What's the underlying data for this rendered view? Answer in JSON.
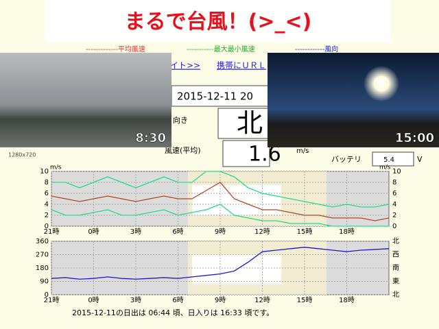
{
  "title": "まるで台風！(>_<)",
  "legend": [
    "-------------平均風速",
    "-----------最大最小風速",
    "------------風向"
  ],
  "nav": [
    "イト>>",
    "携帯にＵＲＬ"
  ],
  "photos": [
    {
      "time": "8:30"
    },
    {
      "time": "15:00"
    }
  ],
  "panel": {
    "datetime": "2015-12-11 20",
    "direction_label": "向き",
    "direction": "北",
    "speed_label": "風速(平均)",
    "speed": "1.6",
    "unit": "m/s",
    "battery_label": "バッテリ",
    "battery": "5.4",
    "battery_unit": "V",
    "resolution": "1280x720"
  },
  "chart_data": [
    {
      "type": "line",
      "y_label": "m/s",
      "x": [
        0,
        1,
        2,
        3,
        4,
        5,
        6,
        7,
        8,
        9,
        10,
        11,
        12,
        13,
        14,
        15,
        16,
        17,
        18,
        19,
        20,
        21,
        22,
        23,
        24
      ],
      "series": [
        {
          "name": "最大",
          "color": "#22dd88",
          "values": [
            8,
            8,
            7,
            8,
            9,
            8,
            7,
            8,
            9,
            8,
            8,
            10,
            10,
            9,
            7,
            6,
            5.5,
            5,
            4.5,
            4,
            3.5,
            4,
            3.5,
            3.5,
            4
          ]
        },
        {
          "name": "最小",
          "color": "#22dd88",
          "values": [
            3,
            2,
            2,
            2.5,
            3,
            2,
            2,
            2.5,
            3,
            2,
            2.5,
            3,
            4,
            2,
            1.5,
            1,
            1,
            0.5,
            0.5,
            0.5,
            0,
            0,
            0,
            0,
            0
          ]
        },
        {
          "name": "平均",
          "color": "#b5471f",
          "values": [
            5.5,
            5,
            4.5,
            5,
            5.5,
            5,
            4.5,
            5,
            5.5,
            5,
            5,
            6.5,
            8,
            5,
            4,
            3,
            3,
            2.5,
            2,
            2,
            1.5,
            1.5,
            1.5,
            1,
            1.5
          ]
        }
      ],
      "xlim": [
        0,
        24
      ],
      "xticks": [
        {
          "value": 0,
          "label": "21時"
        },
        {
          "value": 3,
          "label": "0時"
        },
        {
          "value": 6,
          "label": "3時"
        },
        {
          "value": 9,
          "label": "6時"
        },
        {
          "value": 12,
          "label": "9時"
        },
        {
          "value": 15,
          "label": "12時"
        },
        {
          "value": 18,
          "label": "15時"
        },
        {
          "value": 21,
          "label": "18時"
        }
      ],
      "ylim": [
        0,
        10
      ],
      "yticks": [
        0,
        2,
        4,
        6,
        8,
        10
      ],
      "grid": true
    },
    {
      "type": "line",
      "x": [
        0,
        1,
        2,
        3,
        4,
        5,
        6,
        7,
        8,
        9,
        10,
        11,
        12,
        13,
        14,
        15,
        16,
        17,
        18,
        19,
        20,
        21,
        22,
        23,
        24
      ],
      "series": [
        {
          "name": "風向",
          "color": "#1a1acc",
          "values": [
            110,
            115,
            105,
            110,
            120,
            110,
            105,
            110,
            115,
            110,
            120,
            130,
            140,
            160,
            220,
            290,
            300,
            310,
            320,
            310,
            300,
            290,
            300,
            305,
            310
          ]
        }
      ],
      "xlim": [
        0,
        24
      ],
      "xticks": [
        {
          "value": 0,
          "label": "21時"
        },
        {
          "value": 3,
          "label": "0時"
        },
        {
          "value": 6,
          "label": "3時"
        },
        {
          "value": 9,
          "label": "6時"
        },
        {
          "value": 12,
          "label": "9時"
        },
        {
          "value": 15,
          "label": "12時"
        },
        {
          "value": 18,
          "label": "15時"
        },
        {
          "value": 21,
          "label": "18時"
        }
      ],
      "ylim": [
        0,
        360
      ],
      "yticks": [
        0,
        90,
        180,
        270,
        360
      ],
      "y2lim": [
        0,
        360
      ],
      "y2ticks": [
        {
          "value": 360,
          "label": "北"
        },
        {
          "value": 270,
          "label": "西"
        },
        {
          "value": 180,
          "label": "南"
        },
        {
          "value": 90,
          "label": "東"
        },
        {
          "value": 0,
          "label": "北"
        }
      ],
      "grid": true
    }
  ],
  "footer": "2015-12-11の日出は 06:44 頃、日入りは 16:33 頃です。"
}
